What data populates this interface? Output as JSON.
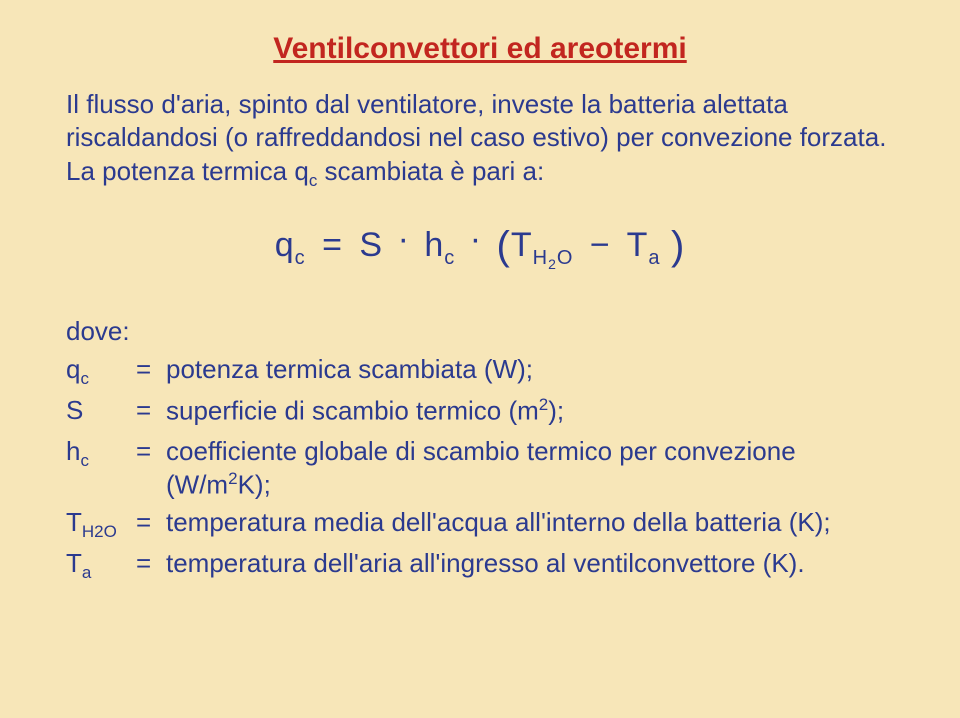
{
  "colors": {
    "background": "#f7e6b8",
    "title": "#c2261f",
    "text": "#2b3a8f"
  },
  "typography": {
    "title_fontsize": 30,
    "body_fontsize": 26,
    "equation_fontsize": 34
  },
  "title": "Ventilconvettori ed areotermi",
  "paragraph_parts": {
    "p1": "Il flusso d'aria, spinto dal ventilatore, investe la batteria alettata riscaldandosi (o raffreddandosi nel caso estivo) per convezione forzata. La potenza termica q",
    "p1_sub": "c",
    "p2": " scambiata è pari a:"
  },
  "equation": {
    "q": "q",
    "q_sub": "c",
    "eq": "=",
    "S": "S",
    "dot1": "·",
    "h": "h",
    "h_sub": "c",
    "dot2": "·",
    "lpar": "(",
    "T1": "T",
    "T1_sub_a": "H",
    "T1_sub_b": "2",
    "T1_sub_c": "O",
    "minus": "−",
    "T2": "T",
    "T2_sub": "a",
    "rpar": ")"
  },
  "dove": "dove:",
  "definitions": [
    {
      "sym_main": "q",
      "sym_sub": "c",
      "eq": "=",
      "desc_plain": "potenza termica scambiata (W);"
    },
    {
      "sym_main": "S",
      "sym_sub": "",
      "eq": "=",
      "desc_html": "superficie di scambio termico (m<span class=\"sup\">2</span>);"
    },
    {
      "sym_main": "h",
      "sym_sub": "c",
      "eq": "=",
      "desc_html": "coefficiente globale di scambio termico per convezione (W/m<span class=\"sup\">2</span>K);"
    },
    {
      "sym_main": "T",
      "sym_sub": "H2O",
      "eq": "=",
      "desc_plain": "temperatura media dell'acqua all'interno della batteria (K);"
    },
    {
      "sym_main": "T",
      "sym_sub": "a",
      "eq": "=",
      "desc_plain": "temperatura dell'aria all'ingresso al ventilconvettore (K)."
    }
  ]
}
